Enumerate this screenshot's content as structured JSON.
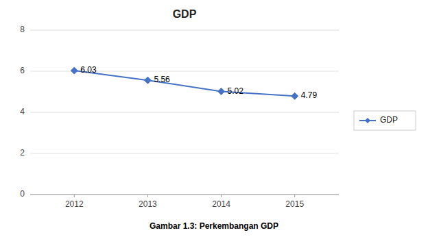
{
  "chart_data": {
    "type": "line",
    "title": "GDP",
    "caption": "Gambar 1.3: Perkembangan GDP",
    "x": [
      2012,
      2013,
      2014,
      2015
    ],
    "series": [
      {
        "name": "GDP",
        "color": "#4472C4",
        "values": [
          6.03,
          5.56,
          5.02,
          4.79
        ],
        "marker": "diamond",
        "line_style": "solid"
      }
    ],
    "xlim": [
      2011.4,
      2015.6
    ],
    "xticks": [
      2012,
      2013,
      2014,
      2015
    ],
    "ylim": [
      0,
      8
    ],
    "yticks": [
      0,
      2,
      4,
      6,
      8
    ],
    "grid": true,
    "legend": "right",
    "data_labels": true
  }
}
